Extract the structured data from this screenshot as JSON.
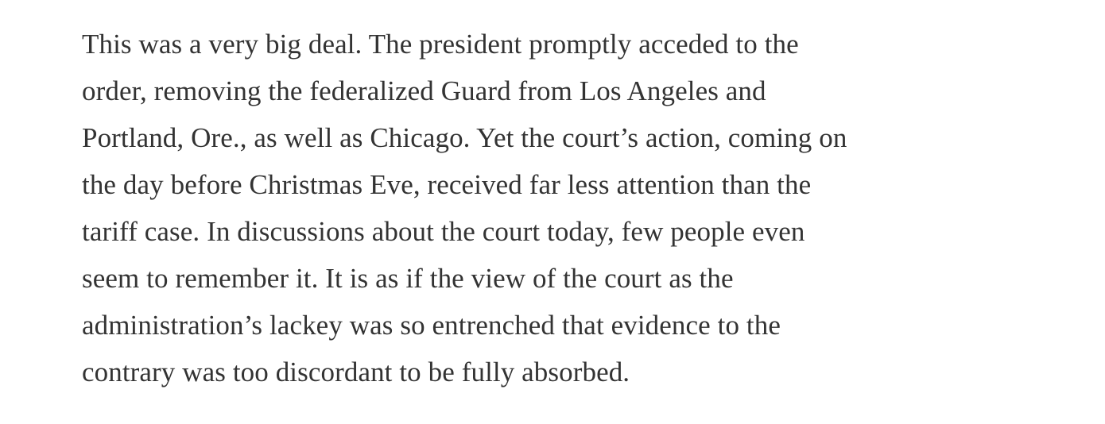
{
  "page": {
    "background_color": "#ffffff",
    "text_color": "#333333"
  },
  "article": {
    "paragraph_text": "This was a very big deal. The president promptly acceded to the order, removing the federalized Guard from Los Angeles and Portland, Ore., as well as Chicago. Yet the court’s action, coming on the day before Christmas Eve, received far less attention than the tariff case. In discussions about the court today, few people even seem to remember it. It is as if the view of the court as the administration’s lackey was so entrenched that evidence to the contrary was too discordant to be fully absorbed.",
    "lines": [
      "This was a very big deal. The president promptly acceded to the",
      "order, removing the federalized Guard from Los Angeles and",
      "Portland, Ore., as well as Chicago. Yet the court’s action, coming on",
      "the day before Christmas Eve, received far less attention than the",
      "tariff case. In discussions about the court today, few people even",
      "seem to remember it. It is as if the view of the court as the",
      "administration’s lackey was so entrenched that evidence to the",
      "contrary was too discordant to be fully absorbed."
    ]
  }
}
